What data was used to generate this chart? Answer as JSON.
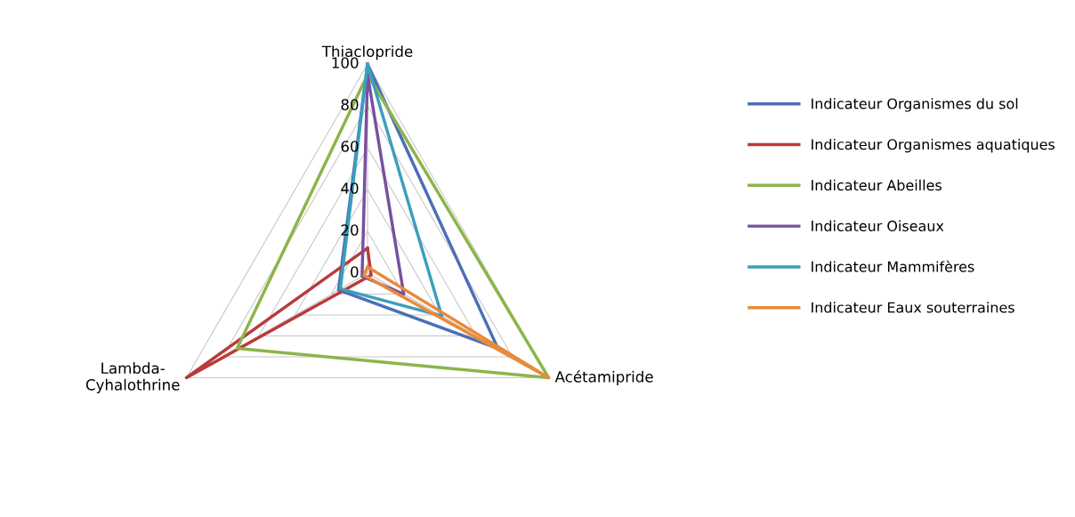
{
  "chart_data": {
    "type": "radar",
    "categories": [
      "Thiaclopride",
      "Acétamipride",
      "Lambda-\nCyhalothrine"
    ],
    "ylim": [
      0,
      100
    ],
    "yticks": [
      0,
      20,
      40,
      60,
      80,
      100
    ],
    "grid": true,
    "legend": "right",
    "series": [
      {
        "name": "Indicateur Organismes du sol",
        "color": "#4a6fb5",
        "values": [
          100,
          72,
          16
        ]
      },
      {
        "name": "Indicateur Organismes aquatiques",
        "color": "#b83c3a",
        "values": [
          12,
          2,
          100
        ]
      },
      {
        "name": "Indicateur Abeilles",
        "color": "#8cb54a",
        "values": [
          95,
          100,
          72
        ]
      },
      {
        "name": "Indicateur Oiseaux",
        "color": "#7a4fa0",
        "values": [
          95,
          20,
          3
        ]
      },
      {
        "name": "Indicateur Mammifères",
        "color": "#3aa0bb",
        "values": [
          100,
          41,
          15
        ]
      },
      {
        "name": "Indicateur Eaux souterraines",
        "color": "#e88a3a",
        "values": [
          3,
          100,
          2
        ]
      }
    ]
  }
}
